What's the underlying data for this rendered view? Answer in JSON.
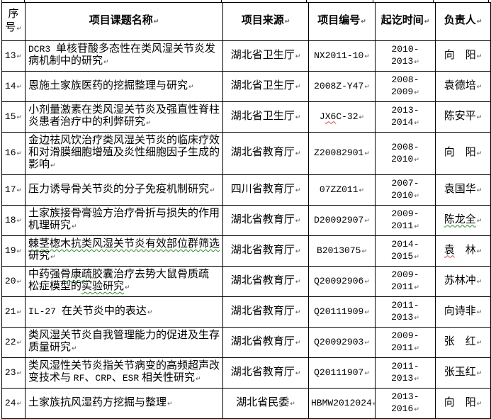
{
  "meta": {
    "return_mark": "↵",
    "mark_colors": {
      "green": "#2e8b2e",
      "red": "#d04545"
    },
    "border_color": "#000000"
  },
  "columns": [
    {
      "key": "no",
      "label": "序号"
    },
    {
      "key": "name",
      "label": "项目课题名称"
    },
    {
      "key": "source",
      "label": "项目来源"
    },
    {
      "key": "number",
      "label": "项目编号"
    },
    {
      "key": "time",
      "label": "起讫时间"
    },
    {
      "key": "person",
      "label": "负责人"
    }
  ],
  "rows": [
    {
      "no": "13",
      "name": [
        {
          "t": "DCR3 ",
          "f": "mono"
        },
        {
          "t": "单核苷酸多态性在类风湿关节炎发病机制中的研究"
        }
      ],
      "source": "湖北省卫生厅",
      "number": [
        {
          "t": "NX2011-10"
        }
      ],
      "time": "2010-2013",
      "person": [
        {
          "t": "向　阳"
        }
      ]
    },
    {
      "no": "14",
      "name": [
        {
          "t": "恩施土家族医药的挖掘整理与研究"
        }
      ],
      "source": "湖北省卫生厅",
      "number": [
        {
          "t": "2008Z-Y47"
        }
      ],
      "time": "2008-2009",
      "person": [
        {
          "t": "袁德培"
        }
      ]
    },
    {
      "no": "15",
      "name": [
        {
          "t": "小剂量激素在类风湿关节炎及强直性脊柱炎患者治疗中的利弊研究"
        }
      ],
      "source": "湖北省卫生厅",
      "number": [
        {
          "t": "J"
        },
        {
          "t": "X6",
          "m": "red"
        },
        {
          "t": "C-32"
        }
      ],
      "time": "2013-2014",
      "person": [
        {
          "t": "陈安平"
        }
      ]
    },
    {
      "no": "16",
      "name": [
        {
          "t": "金边祛风饮治疗类风湿关节炎的临床疗效和对滑膜细胞增殖及炎性细胞因子生成的影响"
        }
      ],
      "source": "湖北省教育厅",
      "number": [
        {
          "t": "Z20082901"
        }
      ],
      "time": "2008-2010",
      "person": [
        {
          "t": "向　阳"
        }
      ]
    },
    {
      "no": "17",
      "name": [
        {
          "t": "压力诱导骨关节炎的分子免疫机制研究"
        }
      ],
      "source": "四川省教育厅",
      "number": [
        {
          "t": "07ZZ011"
        }
      ],
      "time": "2007-2010",
      "person": [
        {
          "t": "袁国华"
        }
      ]
    },
    {
      "no": "18",
      "name": [
        {
          "t": "土家族接骨膏验方治疗骨折与损失的作用机理研究"
        }
      ],
      "source": "湖北省教育厅",
      "number": [
        {
          "t": "D20092907"
        }
      ],
      "time": "2009-2011",
      "person": [
        {
          "t": "陈龙全",
          "m": "green"
        }
      ]
    },
    {
      "no": "19",
      "name": [
        {
          "t": "棘茎楤木抗类风湿关节炎有效部位群筛选",
          "m": "green"
        },
        {
          "t": "研究"
        }
      ],
      "source": "湖北省教育厅",
      "number": [
        {
          "t": "B2013075"
        }
      ],
      "time": "2014-2015",
      "person": [
        {
          "t": "袁",
          "m": "red"
        },
        {
          "t": "　林"
        }
      ]
    },
    {
      "no": "20",
      "name": [
        {
          "t": "中药强"
        },
        {
          "t": "骨康疏",
          "m": "green"
        },
        {
          "t": "胶囊治疗去势大鼠骨质疏松症模型的"
        },
        {
          "t": "实验研究",
          "m": "green"
        }
      ],
      "source": "湖北省教育厅",
      "number": [
        {
          "t": "Q20092906"
        }
      ],
      "time": "2009-2011",
      "person": [
        {
          "t": "苏林冲"
        }
      ]
    },
    {
      "no": "21",
      "name": [
        {
          "t": "IL-27 ",
          "f": "mono"
        },
        {
          "t": "在关节炎中的表达"
        }
      ],
      "source": "湖北省教育厅",
      "number": [
        {
          "t": "Q20111909"
        }
      ],
      "time": "2011-2013",
      "person": [
        {
          "t": "向诗非"
        }
      ]
    },
    {
      "no": "22",
      "name": [
        {
          "t": "类风湿关节炎自我管理能力的促进及生存质量研究"
        }
      ],
      "source": "湖北省教育厅",
      "number": [
        {
          "t": "Q20092903"
        }
      ],
      "time": "2009-2011",
      "person": [
        {
          "t": "张　红"
        }
      ]
    },
    {
      "no": "23",
      "name": [
        {
          "t": "类风湿性关节炎指关节病变的高频超声改变技术与 "
        },
        {
          "t": "RF",
          "f": "mono"
        },
        {
          "t": "、"
        },
        {
          "t": "CRP",
          "f": "mono"
        },
        {
          "t": "、"
        },
        {
          "t": "ESR",
          "f": "mono"
        },
        {
          "t": " 相关性研究"
        }
      ],
      "source": "湖北省教育厅",
      "number": [
        {
          "t": "Q20111907"
        }
      ],
      "time": "2011-2013",
      "person": [
        {
          "t": "张玉红"
        }
      ]
    },
    {
      "no": "24",
      "name": [
        {
          "t": "土家族抗风湿药方挖掘与整理"
        }
      ],
      "source": "湖北省民委",
      "number": [
        {
          "t": "HBMW2012024"
        }
      ],
      "time": "2013-2016",
      "person": [
        {
          "t": "向　阳"
        }
      ]
    }
  ]
}
